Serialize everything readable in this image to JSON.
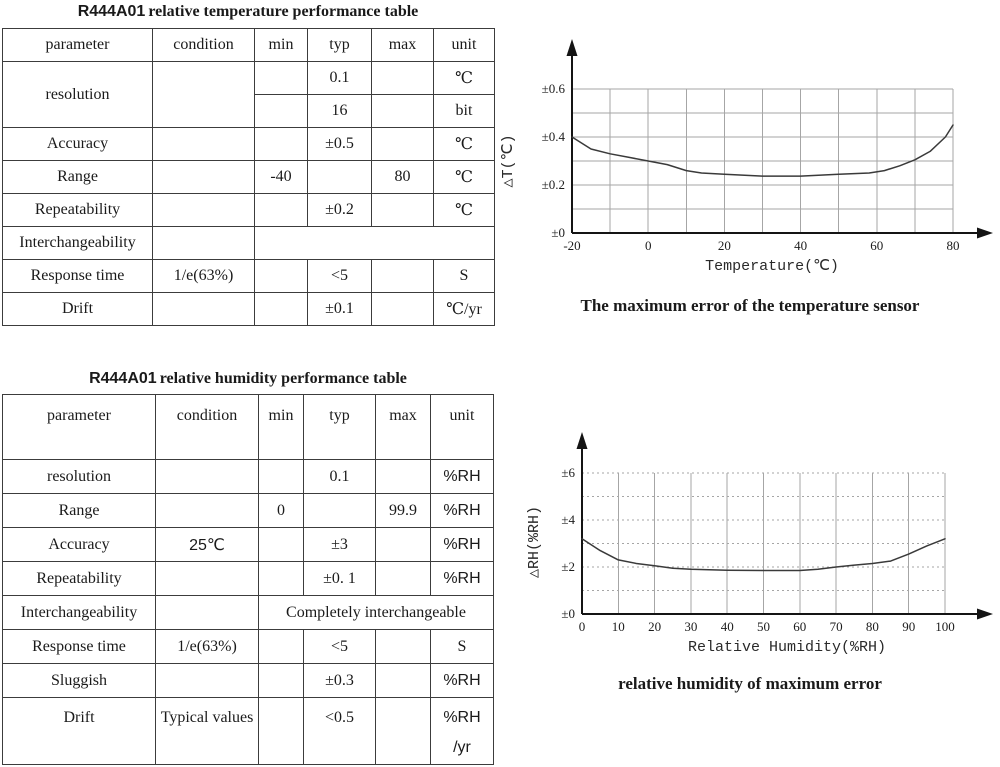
{
  "titles": {
    "table1_model": "R444A01",
    "table1_text": "relative temperature performance table",
    "table2_model": "R444A01",
    "table2_text": "relative humidity performance table"
  },
  "table1": {
    "header": [
      "parameter",
      "condition",
      "min",
      "typ",
      "max",
      "unit"
    ],
    "rows": [
      {
        "cells": [
          {
            "t": "resolution",
            "rs": 2
          },
          {
            "t": "",
            "rs": 2
          },
          {
            "t": ""
          },
          {
            "t": "0.1"
          },
          {
            "t": ""
          },
          {
            "t": "℃"
          }
        ]
      },
      {
        "cells": [
          {
            "t": ""
          },
          {
            "t": "16"
          },
          {
            "t": ""
          },
          {
            "t": "bit"
          }
        ]
      },
      {
        "cells": [
          {
            "t": "Accuracy"
          },
          {
            "t": ""
          },
          {
            "t": ""
          },
          {
            "t": "±0.5"
          },
          {
            "t": ""
          },
          {
            "t": "℃"
          }
        ]
      },
      {
        "cells": [
          {
            "t": "Range"
          },
          {
            "t": ""
          },
          {
            "t": "-40"
          },
          {
            "t": ""
          },
          {
            "t": "80"
          },
          {
            "t": "℃"
          }
        ]
      },
      {
        "cells": [
          {
            "t": "Repeatability"
          },
          {
            "t": ""
          },
          {
            "t": ""
          },
          {
            "t": "±0.2"
          },
          {
            "t": ""
          },
          {
            "t": "℃"
          }
        ]
      },
      {
        "cells": [
          {
            "t": "Interchangeability"
          },
          {
            "t": ""
          },
          {
            "t": "",
            "cs": 4
          }
        ]
      },
      {
        "cells": [
          {
            "t": "Response time"
          },
          {
            "t": "1/e(63%)"
          },
          {
            "t": ""
          },
          {
            "t": "<5"
          },
          {
            "t": ""
          },
          {
            "t": "S"
          }
        ]
      },
      {
        "cells": [
          {
            "t": "Drift"
          },
          {
            "t": ""
          },
          {
            "t": ""
          },
          {
            "t": "±0.1"
          },
          {
            "t": ""
          },
          {
            "t": "℃/yr"
          }
        ]
      }
    ]
  },
  "table2": {
    "header": [
      "parameter",
      "condition",
      "min",
      "typ",
      "max",
      "unit"
    ],
    "rows": [
      {
        "cells": [
          {
            "t": "resolution"
          },
          {
            "t": ""
          },
          {
            "t": ""
          },
          {
            "t": "0.1"
          },
          {
            "t": ""
          },
          {
            "t": "%RH",
            "sans": true
          }
        ]
      },
      {
        "cells": [
          {
            "t": "Range"
          },
          {
            "t": ""
          },
          {
            "t": "0"
          },
          {
            "t": ""
          },
          {
            "t": "99.9"
          },
          {
            "t": "%RH",
            "sans": true
          }
        ]
      },
      {
        "cells": [
          {
            "t": "Accuracy"
          },
          {
            "t": "25℃",
            "sans": true
          },
          {
            "t": ""
          },
          {
            "t": "±3"
          },
          {
            "t": ""
          },
          {
            "t": "%RH",
            "sans": true
          }
        ]
      },
      {
        "cells": [
          {
            "t": "Repeatability"
          },
          {
            "t": ""
          },
          {
            "t": ""
          },
          {
            "t": "±0. 1"
          },
          {
            "t": ""
          },
          {
            "t": "%RH",
            "sans": true
          }
        ]
      },
      {
        "cells": [
          {
            "t": "Interchangeability"
          },
          {
            "t": ""
          },
          {
            "t": "Completely interchangeable",
            "cs": 4
          }
        ]
      },
      {
        "cells": [
          {
            "t": "Response time"
          },
          {
            "t": "1/e(63%)"
          },
          {
            "t": ""
          },
          {
            "t": "<5"
          },
          {
            "t": ""
          },
          {
            "t": "S"
          }
        ]
      },
      {
        "cells": [
          {
            "t": "Sluggish"
          },
          {
            "t": ""
          },
          {
            "t": ""
          },
          {
            "t": "±0.3"
          },
          {
            "t": ""
          },
          {
            "t": "%RH",
            "sans": true
          }
        ]
      },
      {
        "cells": [
          {
            "t": "Drift"
          },
          {
            "t": "Typical values"
          },
          {
            "t": ""
          },
          {
            "t": "<0.5"
          },
          {
            "t": ""
          },
          {
            "t": "%RH /yr",
            "sans": true
          }
        ]
      }
    ]
  },
  "chart_data": [
    {
      "type": "line",
      "title": "The maximum error of the temperature sensor",
      "xlabel": "Temperature(℃)",
      "ylabel": "△T(℃)",
      "xlim": [
        -20,
        80
      ],
      "ylim": [
        0,
        0.6
      ],
      "x_ticks": [
        -20,
        0,
        20,
        40,
        60,
        80
      ],
      "x_tick_labels": [
        "-20",
        "0",
        "20",
        "40",
        "60",
        "80"
      ],
      "y_ticks": [
        0,
        0.2,
        0.4,
        0.6
      ],
      "y_tick_labels": [
        "±0",
        "±0.2",
        "±0.4",
        "±0.6"
      ],
      "x_grid": [
        -10,
        0,
        10,
        20,
        30,
        40,
        50,
        60,
        70,
        80
      ],
      "y_grid": [
        0.1,
        0.2,
        0.3,
        0.4,
        0.5,
        0.6
      ],
      "grid": true,
      "legend": "none",
      "series": [
        {
          "name": "maximum temperature error",
          "x": [
            -20,
            -15,
            -10,
            -5,
            0,
            5,
            10,
            14,
            20,
            30,
            40,
            50,
            58,
            62,
            66,
            70,
            74,
            78,
            80
          ],
          "y": [
            0.4,
            0.35,
            0.33,
            0.315,
            0.3,
            0.285,
            0.26,
            0.25,
            0.245,
            0.237,
            0.237,
            0.245,
            0.25,
            0.26,
            0.28,
            0.305,
            0.34,
            0.4,
            0.45
          ]
        }
      ]
    },
    {
      "type": "line",
      "title": "relative humidity of maximum error",
      "xlabel": "Relative Humidity(%RH)",
      "ylabel": "△RH(%RH)",
      "xlim": [
        0,
        100
      ],
      "ylim": [
        0,
        6
      ],
      "x_ticks": [
        0,
        10,
        20,
        30,
        40,
        50,
        60,
        70,
        80,
        90,
        100
      ],
      "x_tick_labels": [
        "0",
        "10",
        "20",
        "30",
        "40",
        "50",
        "60",
        "70",
        "80",
        "90",
        "100"
      ],
      "y_ticks": [
        0,
        2,
        4,
        6
      ],
      "y_tick_labels": [
        "±0",
        "±2",
        "±4",
        "±6"
      ],
      "x_grid": [
        10,
        20,
        30,
        40,
        50,
        60,
        70,
        80,
        90,
        100
      ],
      "y_grid": [
        1,
        2,
        3,
        4,
        5,
        6
      ],
      "grid": true,
      "legend": "none",
      "series": [
        {
          "name": "maximum humidity error",
          "x": [
            0,
            5,
            10,
            15,
            20,
            25,
            30,
            40,
            50,
            60,
            65,
            70,
            75,
            80,
            85,
            90,
            95,
            100
          ],
          "y": [
            3.2,
            2.7,
            2.3,
            2.15,
            2.05,
            1.95,
            1.9,
            1.86,
            1.85,
            1.85,
            1.9,
            2.0,
            2.08,
            2.15,
            2.25,
            2.55,
            2.9,
            3.2
          ]
        }
      ]
    }
  ]
}
